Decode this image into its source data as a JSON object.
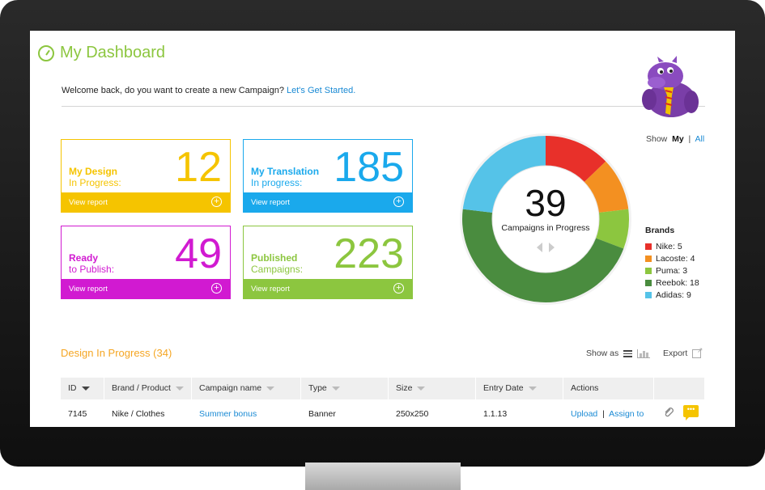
{
  "header": {
    "title": "My Dashboard",
    "welcome_text": "Welcome back, do you want to create a new Campaign?",
    "welcome_link": "Let's Get Started."
  },
  "cards": [
    {
      "label1": "My Design",
      "label2": "In Progress:",
      "value": "12",
      "report": "View report",
      "color": "#f5c400"
    },
    {
      "label1": "My Translation",
      "label2": "In progress:",
      "value": "185",
      "report": "View report",
      "color": "#1aa9ec"
    },
    {
      "label1": "Ready",
      "label2": "to Publish:",
      "value": "49",
      "report": "View report",
      "color": "#d11ad1"
    },
    {
      "label1": "Published",
      "label2": "Campaigns:",
      "value": "223",
      "report": "View report",
      "color": "#8cc63f"
    }
  ],
  "show_toggle": {
    "label": "Show",
    "my": "My",
    "sep": "|",
    "all": "All"
  },
  "chart_data": {
    "type": "pie",
    "center_value": "39",
    "center_label": "Campaigns in Progress",
    "legend_title": "Brands",
    "slices": [
      {
        "name": "Nike",
        "value": 5,
        "label": "Nike: 5",
        "color": "#e8302a"
      },
      {
        "name": "Lacoste",
        "value": 4,
        "label": "Lacoste: 4",
        "color": "#f39021"
      },
      {
        "name": "Puma",
        "value": 3,
        "label": "Puma: 3",
        "color": "#8cc63f"
      },
      {
        "name": "Reebok",
        "value": 18,
        "label": "Reebok: 18",
        "color": "#4a8c3f"
      },
      {
        "name": "Adidas",
        "value": 9,
        "label": "Adidas: 9",
        "color": "#55c3e8"
      }
    ]
  },
  "section": {
    "title": "Design In Progress (34)",
    "show_as": "Show as",
    "export": "Export"
  },
  "table": {
    "columns": [
      "ID",
      "Brand / Product",
      "Campaign name",
      "Type",
      "Size",
      "Entry Date",
      "Actions"
    ],
    "rows": [
      {
        "id": "7145",
        "brand": "Nike / Clothes",
        "campaign": "Summer bonus",
        "type": "Banner",
        "size": "250x250",
        "date": "1.1.13",
        "upload": "Upload",
        "sep": "|",
        "assign": "Assign to"
      }
    ]
  }
}
